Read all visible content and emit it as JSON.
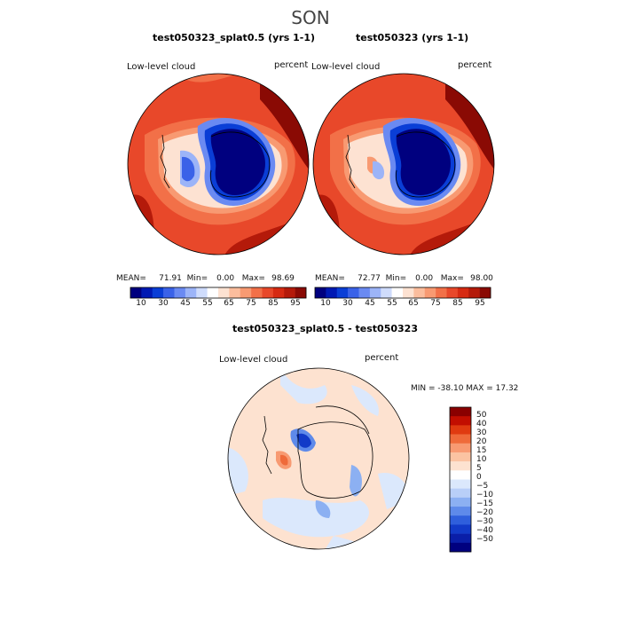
{
  "season": "SON",
  "panels": [
    {
      "title": "test050323_splat0.5 (yrs 1-1)",
      "variable": "Low-level cloud",
      "units": "percent",
      "stats": {
        "mean_label": "MEAN=",
        "mean": "71.91",
        "min_label": "Min=",
        "min": "0.00",
        "max_label": "Max=",
        "max": "98.69"
      }
    },
    {
      "title": "test050323 (yrs 1-1)",
      "variable": "Low-level cloud",
      "units": "percent",
      "stats": {
        "mean_label": "MEAN=",
        "mean": "72.77",
        "min_label": "Min=",
        "min": "0.00",
        "max_label": "Max=",
        "max": "98.00"
      }
    }
  ],
  "colorbar_top": {
    "ticks": [
      "10",
      "30",
      "45",
      "55",
      "65",
      "75",
      "85",
      "95"
    ],
    "colors": [
      "#00007f",
      "#0019b3",
      "#0a3ed6",
      "#3a62e8",
      "#6a8af2",
      "#9cb4f8",
      "#cfdcfc",
      "#ffffff",
      "#fde2d2",
      "#fbbd9d",
      "#f89a72",
      "#f27048",
      "#e8482a",
      "#d62a12",
      "#b41a0a",
      "#8a0a04"
    ]
  },
  "diff_panel": {
    "title": "test050323_splat0.5 - test050323",
    "variable": "Low-level cloud",
    "units": "percent",
    "stats": {
      "text": "MIN = -38.10 MAX =  17.32"
    }
  },
  "colorbar_diff": {
    "labels": [
      "50",
      "40",
      "30",
      "20",
      "15",
      "10",
      "5",
      "0",
      "−5",
      "−10",
      "−15",
      "−20",
      "−30",
      "−40",
      "−50"
    ],
    "colors": [
      "#8a0000",
      "#c20e00",
      "#e03a10",
      "#ef6a3a",
      "#f89a72",
      "#fbc3a2",
      "#fde2d0",
      "#ffffff",
      "#dbe8fc",
      "#b9cff8",
      "#8cb0f2",
      "#5e8aea",
      "#2f5fdc",
      "#123ac8",
      "#0a1ea8",
      "#00007f"
    ]
  }
}
